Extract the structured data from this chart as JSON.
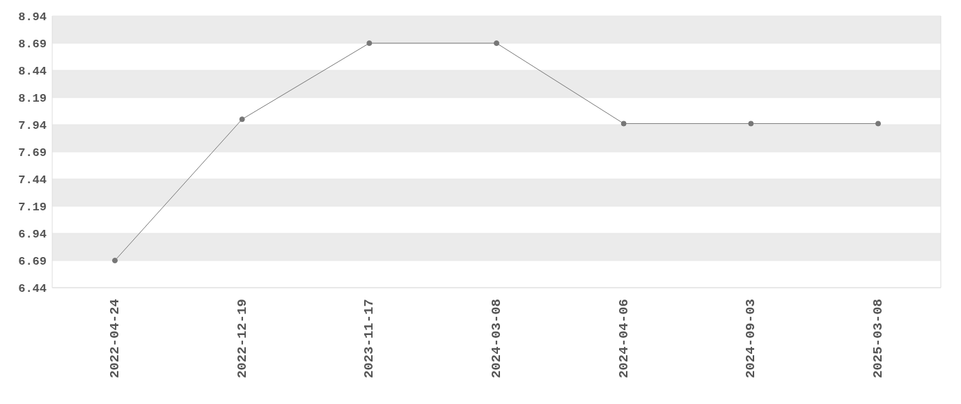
{
  "chart_data": {
    "type": "line",
    "categories": [
      "2022-04-24",
      "2022-12-19",
      "2023-11-17",
      "2024-03-08",
      "2024-04-06",
      "2024-09-03",
      "2025-03-08"
    ],
    "values": [
      6.69,
      7.99,
      8.69,
      8.69,
      7.95,
      7.95,
      7.95
    ],
    "color": "#777777",
    "ylim": [
      6.44,
      8.94
    ],
    "yticks": [
      6.44,
      6.69,
      6.94,
      7.19,
      7.44,
      7.69,
      7.94,
      8.19,
      8.44,
      8.69,
      8.94
    ],
    "grid": "y",
    "marker": "circle",
    "line_style": "solid"
  }
}
